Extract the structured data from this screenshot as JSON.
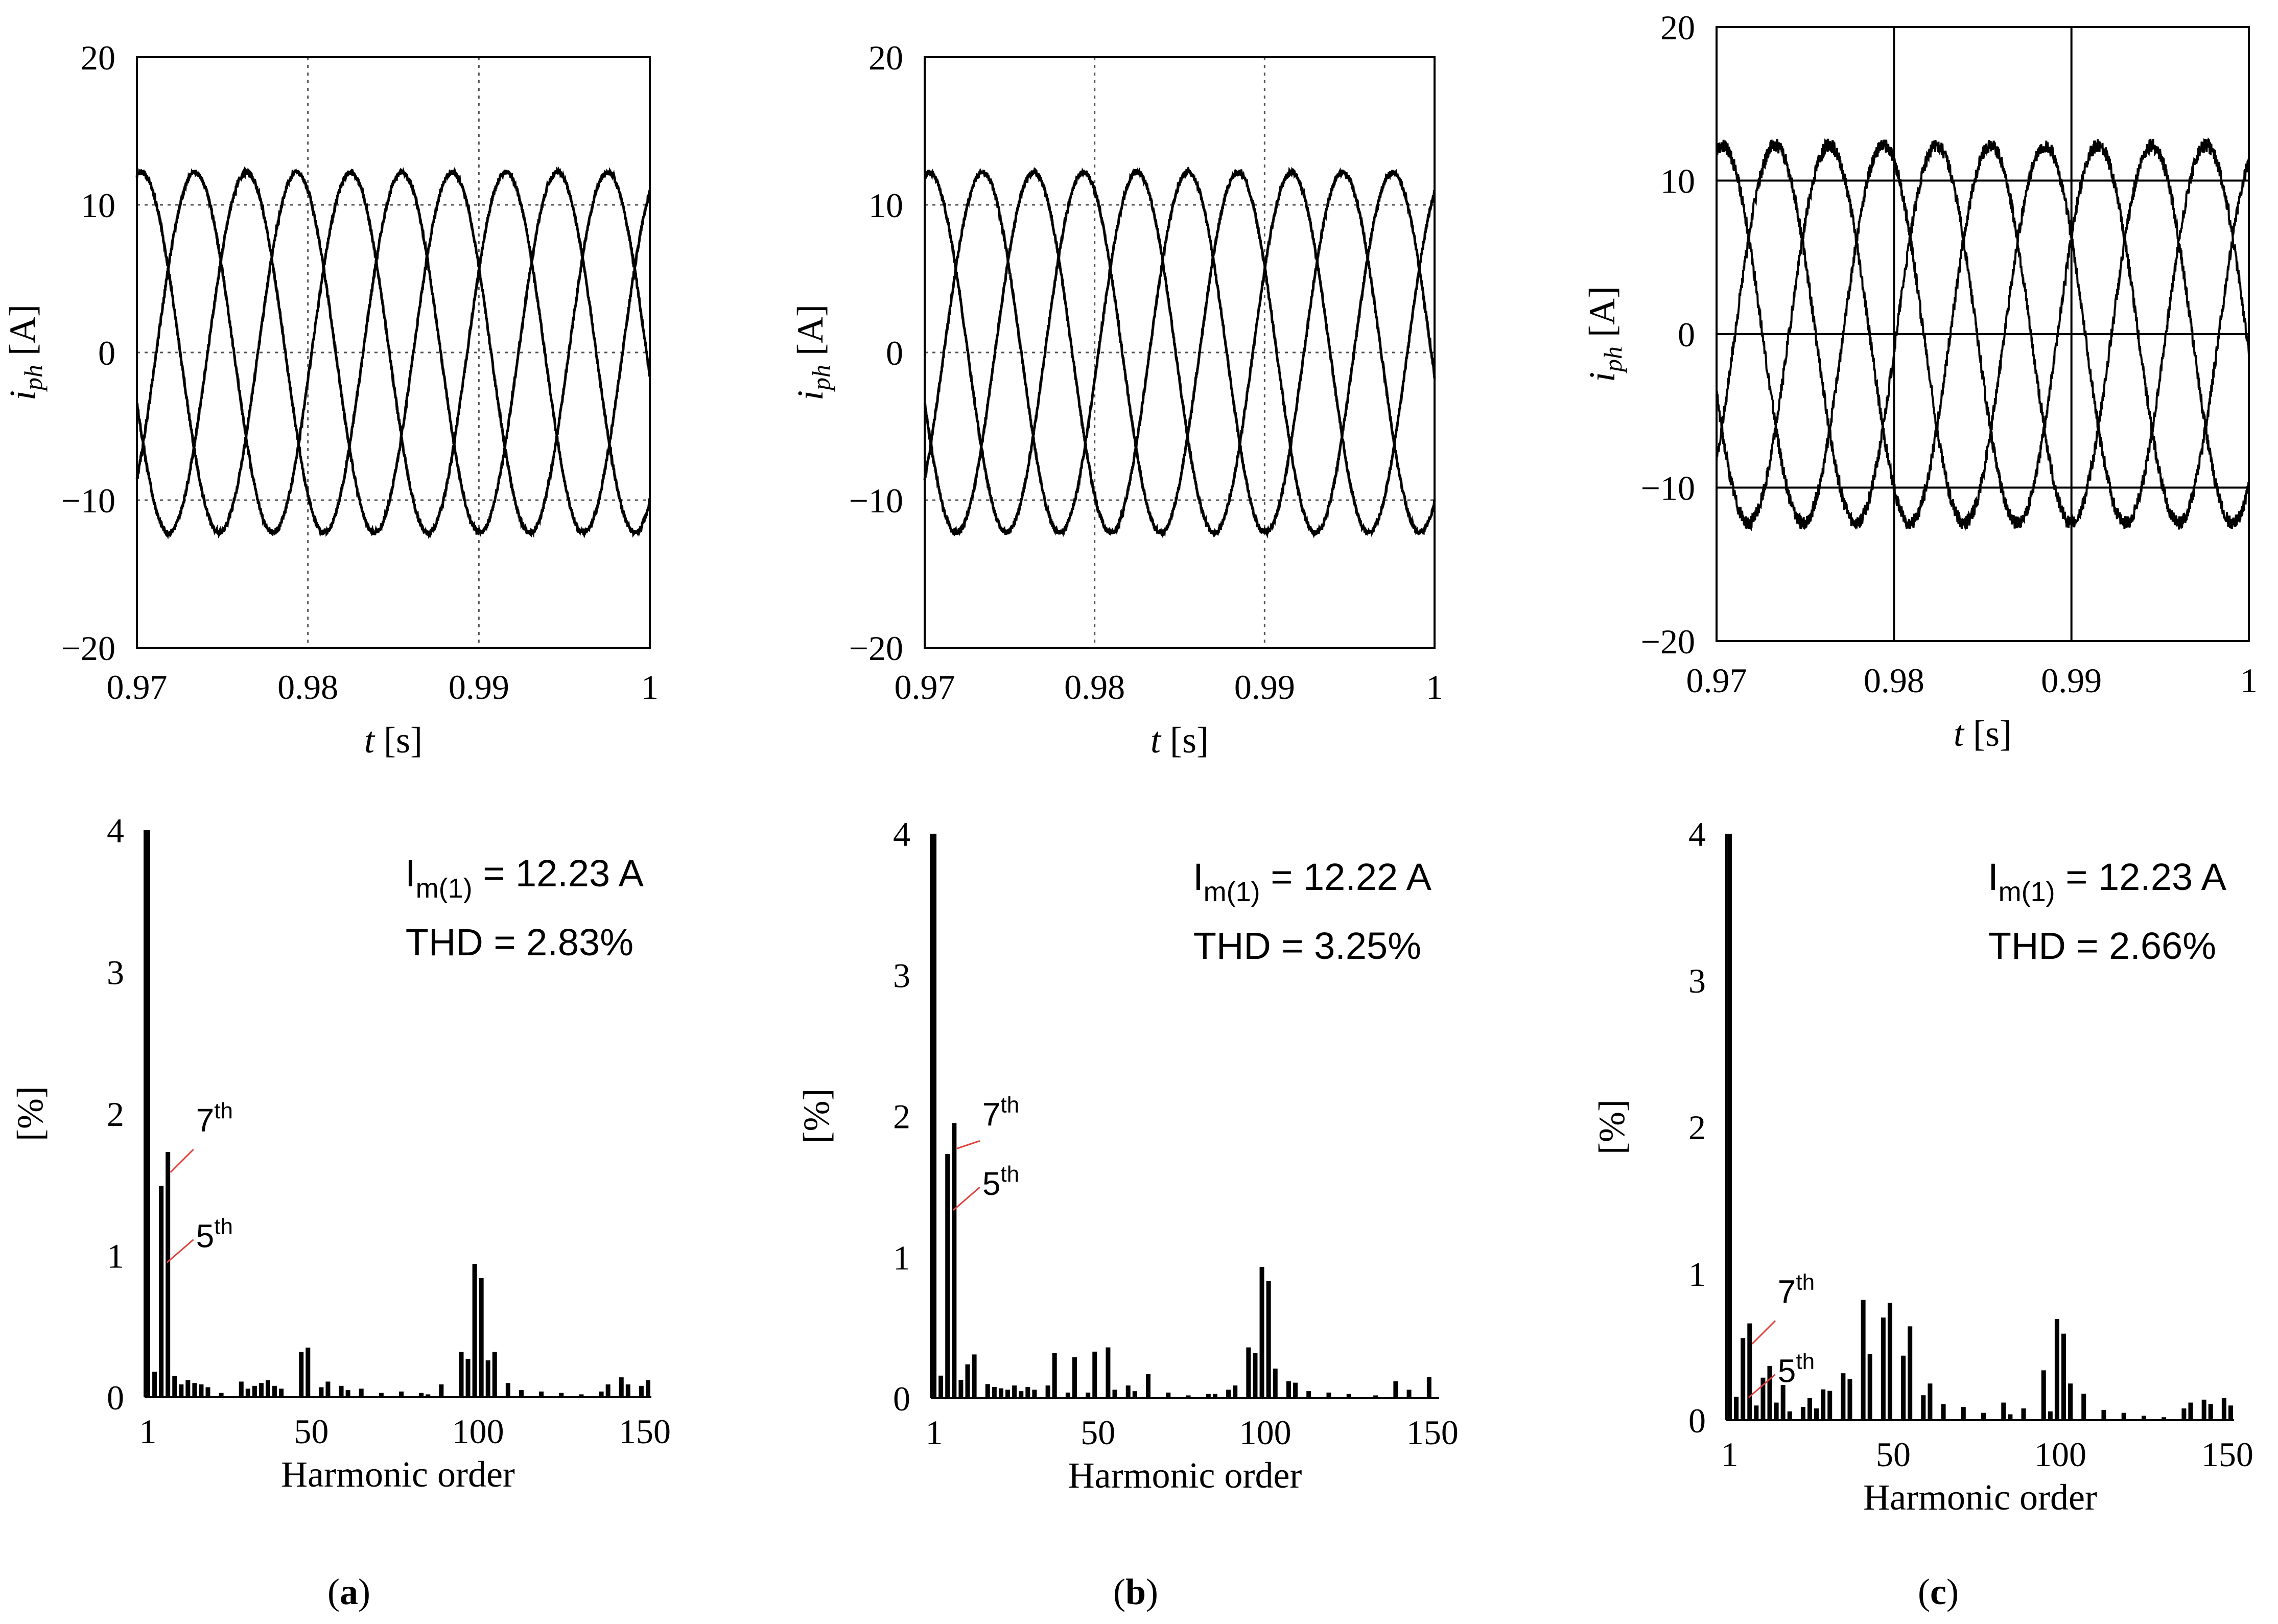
{
  "panels": [
    {
      "label": "a",
      "time": {
        "type": "line",
        "x_label": "t",
        "x_unit": "[s]",
        "y_label": "i",
        "y_sub": "ph",
        "y_unit": "[A]",
        "xlim": [
          0.97,
          1.0
        ],
        "ylim": [
          -20,
          20
        ],
        "xticks": [
          0.97,
          0.98,
          0.99,
          1.0
        ],
        "xtick_labels": [
          "0.97",
          "0.98",
          "0.99",
          "1"
        ],
        "yticks": [
          20,
          10,
          0,
          -10,
          -20
        ],
        "ytick_labels": [
          "20",
          "10",
          "0",
          "−10",
          "−20"
        ],
        "grid": "dotted",
        "frequency_hz": 110,
        "series": [
          {
            "name": "phase A",
            "amplitude": 12.2,
            "value_at_0.97": 12.0
          },
          {
            "name": "phase B",
            "amplitude": 12.2,
            "value_at_0.97": -3.4
          },
          {
            "name": "phase C",
            "amplitude": 12.2,
            "value_at_0.97": -8.6
          }
        ]
      },
      "spectrum": {
        "type": "bar",
        "x_label": "Harmonic order",
        "y_label": "[%]",
        "xlim": [
          0,
          152
        ],
        "ylim": [
          0,
          4
        ],
        "xticks": [
          1,
          50,
          100,
          150
        ],
        "xtick_labels": [
          "1",
          "50",
          "100",
          "150"
        ],
        "yticks": [
          0,
          1,
          2,
          3,
          4
        ],
        "ytick_labels": [
          "0",
          "1",
          "2",
          "3",
          "4"
        ],
        "harmonics": [
          1,
          3,
          5,
          7,
          9,
          11,
          13,
          15,
          17,
          19,
          23,
          29,
          31,
          33,
          35,
          37,
          39,
          41,
          47,
          49,
          53,
          55,
          59,
          61,
          65,
          71,
          77,
          83,
          85,
          89,
          95,
          97,
          99,
          101,
          103,
          105,
          109,
          113,
          119,
          125,
          131,
          137,
          139,
          143,
          145,
          149,
          151
        ],
        "values": [
          4.0,
          0.18,
          1.49,
          1.73,
          0.15,
          0.09,
          0.12,
          0.1,
          0.09,
          0.07,
          0.03,
          0.11,
          0.06,
          0.08,
          0.1,
          0.12,
          0.08,
          0.06,
          0.32,
          0.35,
          0.07,
          0.11,
          0.08,
          0.05,
          0.06,
          0.03,
          0.04,
          0.03,
          0.02,
          0.09,
          0.32,
          0.27,
          0.94,
          0.84,
          0.26,
          0.32,
          0.1,
          0.05,
          0.04,
          0.03,
          0.02,
          0.04,
          0.09,
          0.14,
          0.09,
          0.08,
          0.12
        ],
        "annotations": {
          "im_prefix": "I",
          "im_sub": "m(1)",
          "im_value": "= 12.23 A",
          "thd": "THD = 2.83%",
          "h7_label": "7",
          "h5_label": "5",
          "ord_suffix": "th"
        }
      }
    },
    {
      "label": "b",
      "time": {
        "type": "line",
        "x_label": "t",
        "x_unit": "[s]",
        "y_label": "i",
        "y_sub": "ph",
        "y_unit": "[A]",
        "xlim": [
          0.97,
          1.0
        ],
        "ylim": [
          -20,
          20
        ],
        "xticks": [
          0.97,
          0.98,
          0.99,
          1.0
        ],
        "xtick_labels": [
          "0.97",
          "0.98",
          "0.99",
          "1"
        ],
        "yticks": [
          20,
          10,
          0,
          -10,
          -20
        ],
        "ytick_labels": [
          "20",
          "10",
          "0",
          "−10",
          "−20"
        ],
        "grid": "dotted",
        "frequency_hz": 110,
        "series": [
          {
            "name": "phase A",
            "amplitude": 12.2,
            "value_at_0.97": 12.0
          },
          {
            "name": "phase B",
            "amplitude": 12.2,
            "value_at_0.97": -3.4
          },
          {
            "name": "phase C",
            "amplitude": 12.2,
            "value_at_0.97": -8.6
          }
        ]
      },
      "spectrum": {
        "type": "bar",
        "x_label": "Harmonic order",
        "y_label": "[%]",
        "xlim": [
          0,
          152
        ],
        "ylim": [
          0,
          4
        ],
        "xticks": [
          1,
          50,
          100,
          150
        ],
        "xtick_labels": [
          "1",
          "50",
          "100",
          "150"
        ],
        "yticks": [
          0,
          1,
          2,
          3,
          4
        ],
        "ytick_labels": [
          "0",
          "1",
          "2",
          "3",
          "4"
        ],
        "harmonics": [
          1,
          3,
          5,
          7,
          9,
          11,
          13,
          17,
          19,
          21,
          23,
          25,
          27,
          29,
          31,
          35,
          37,
          41,
          43,
          47,
          49,
          53,
          55,
          59,
          61,
          65,
          71,
          77,
          83,
          85,
          89,
          91,
          95,
          97,
          99,
          101,
          103,
          107,
          109,
          113,
          119,
          125,
          133,
          139,
          143,
          149
        ],
        "values": [
          4.0,
          0.16,
          1.73,
          1.95,
          0.13,
          0.24,
          0.31,
          0.1,
          0.08,
          0.07,
          0.06,
          0.09,
          0.05,
          0.08,
          0.06,
          0.09,
          0.32,
          0.04,
          0.29,
          0.04,
          0.33,
          0.36,
          0.06,
          0.09,
          0.05,
          0.17,
          0.04,
          0.02,
          0.03,
          0.03,
          0.06,
          0.09,
          0.36,
          0.32,
          0.93,
          0.83,
          0.21,
          0.12,
          0.11,
          0.05,
          0.04,
          0.03,
          0.02,
          0.12,
          0.06,
          0.15
        ],
        "annotations": {
          "im_prefix": "I",
          "im_sub": "m(1)",
          "im_value": "= 12.22 A",
          "thd": "THD = 3.25%",
          "h7_label": "7",
          "h5_label": "5",
          "ord_suffix": "th"
        }
      }
    },
    {
      "label": "c",
      "time": {
        "type": "line",
        "x_label": "t",
        "x_unit": "[s]",
        "y_label": "i",
        "y_sub": "ph",
        "y_unit": "[A]",
        "xlim": [
          0.97,
          1.0
        ],
        "ylim": [
          -20,
          20
        ],
        "xticks": [
          0.97,
          0.98,
          0.99,
          1.0
        ],
        "xtick_labels": [
          "0.97",
          "0.98",
          "0.99",
          "1"
        ],
        "yticks": [
          20,
          10,
          0,
          -10,
          -20
        ],
        "ytick_labels": [
          "20",
          "10",
          "0",
          "−10",
          "−20"
        ],
        "grid": "solid",
        "frequency_hz": 110,
        "series": [
          {
            "name": "phase A",
            "amplitude": 12.3,
            "value_at_0.97": 12.0
          },
          {
            "name": "phase B",
            "amplitude": 12.3,
            "value_at_0.97": -3.9
          },
          {
            "name": "phase C",
            "amplitude": 12.3,
            "value_at_0.97": -8.1
          }
        ]
      },
      "spectrum": {
        "type": "bar",
        "x_label": "Harmonic order",
        "y_label": "[%]",
        "xlim": [
          0,
          152
        ],
        "ylim": [
          0,
          4
        ],
        "xticks": [
          1,
          50,
          100,
          150
        ],
        "xtick_labels": [
          "1",
          "50",
          "100",
          "150"
        ],
        "yticks": [
          0,
          1,
          2,
          3,
          4
        ],
        "ytick_labels": [
          "0",
          "1",
          "2",
          "3",
          "4"
        ],
        "harmonics": [
          1,
          3,
          5,
          7,
          9,
          11,
          13,
          15,
          17,
          19,
          23,
          25,
          27,
          29,
          31,
          35,
          37,
          41,
          43,
          47,
          49,
          53,
          55,
          59,
          61,
          65,
          71,
          77,
          83,
          85,
          89,
          95,
          97,
          99,
          101,
          103,
          107,
          113,
          119,
          125,
          131,
          137,
          139,
          143,
          145,
          149,
          151
        ],
        "values": [
          4.0,
          0.16,
          0.56,
          0.66,
          0.1,
          0.29,
          0.37,
          0.12,
          0.24,
          0.06,
          0.09,
          0.15,
          0.08,
          0.21,
          0.2,
          0.32,
          0.28,
          0.82,
          0.45,
          0.7,
          0.8,
          0.44,
          0.64,
          0.17,
          0.25,
          0.11,
          0.09,
          0.05,
          0.12,
          0.04,
          0.08,
          0.34,
          0.06,
          0.69,
          0.59,
          0.25,
          0.18,
          0.07,
          0.05,
          0.03,
          0.02,
          0.08,
          0.12,
          0.14,
          0.11,
          0.15,
          0.1
        ],
        "annotations": {
          "im_prefix": "I",
          "im_sub": "m(1)",
          "im_value": "= 12.23 A",
          "thd": "THD = 2.66%",
          "h7_label": "7",
          "h5_label": "5",
          "ord_suffix": "th"
        }
      }
    }
  ]
}
